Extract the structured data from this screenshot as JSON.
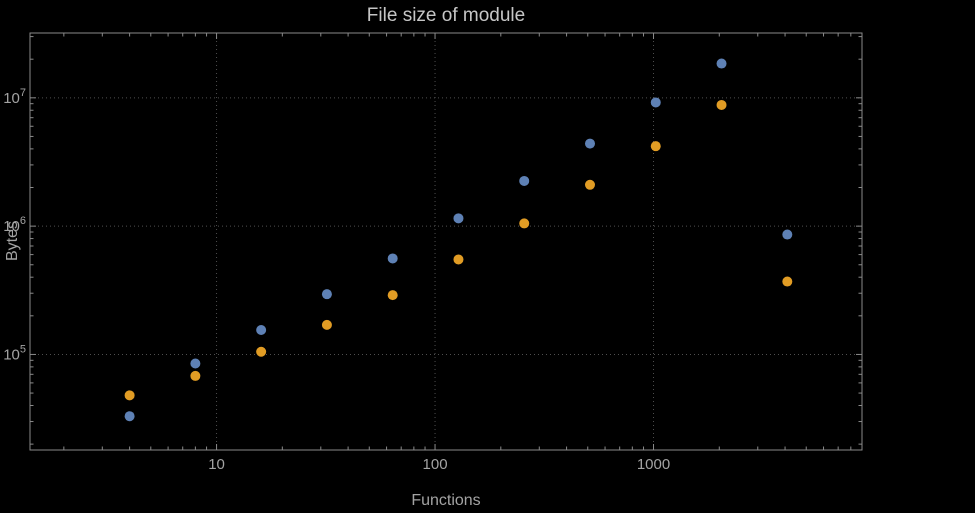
{
  "title": "File size of module",
  "axes": {
    "xlabel": "Functions",
    "ylabel": "Bytes"
  },
  "colors": {
    "background": "#000000",
    "frame": "#8a8a8a",
    "grid": "#4f4f4f",
    "tick_text": "#a3a3a3",
    "title_text": "#c6c6c6"
  },
  "chart_data": {
    "type": "scatter",
    "title": "File size of module",
    "xlabel": "Functions",
    "ylabel": "Bytes",
    "x_scale": "log",
    "y_scale": "log",
    "grid": true,
    "legend": false,
    "xlim": [
      1.4,
      9000
    ],
    "ylim": [
      18000,
      32000000.0
    ],
    "x_ticks": [
      10,
      100,
      1000
    ],
    "x_tick_labels": [
      "10",
      "100",
      "1000"
    ],
    "y_ticks": [
      100000.0,
      1000000.0,
      10000000.0
    ],
    "y_tick_exponents": [
      5,
      6,
      7
    ],
    "x": [
      4,
      8,
      16,
      32,
      64,
      128,
      256,
      512,
      1024,
      2048,
      4096
    ],
    "series": [
      {
        "name": "series-blue",
        "color": "#5e81b5",
        "values": [
          33000,
          85000,
          155000,
          295000,
          560000,
          1150000,
          2250000,
          4400000,
          9200000,
          18500000,
          860000
        ]
      },
      {
        "name": "series-orange",
        "color": "#e19c24",
        "values": [
          48000,
          68000,
          105000,
          170000,
          290000,
          550000,
          1050000,
          2100000,
          4200000,
          8800000,
          370000
        ]
      }
    ]
  }
}
